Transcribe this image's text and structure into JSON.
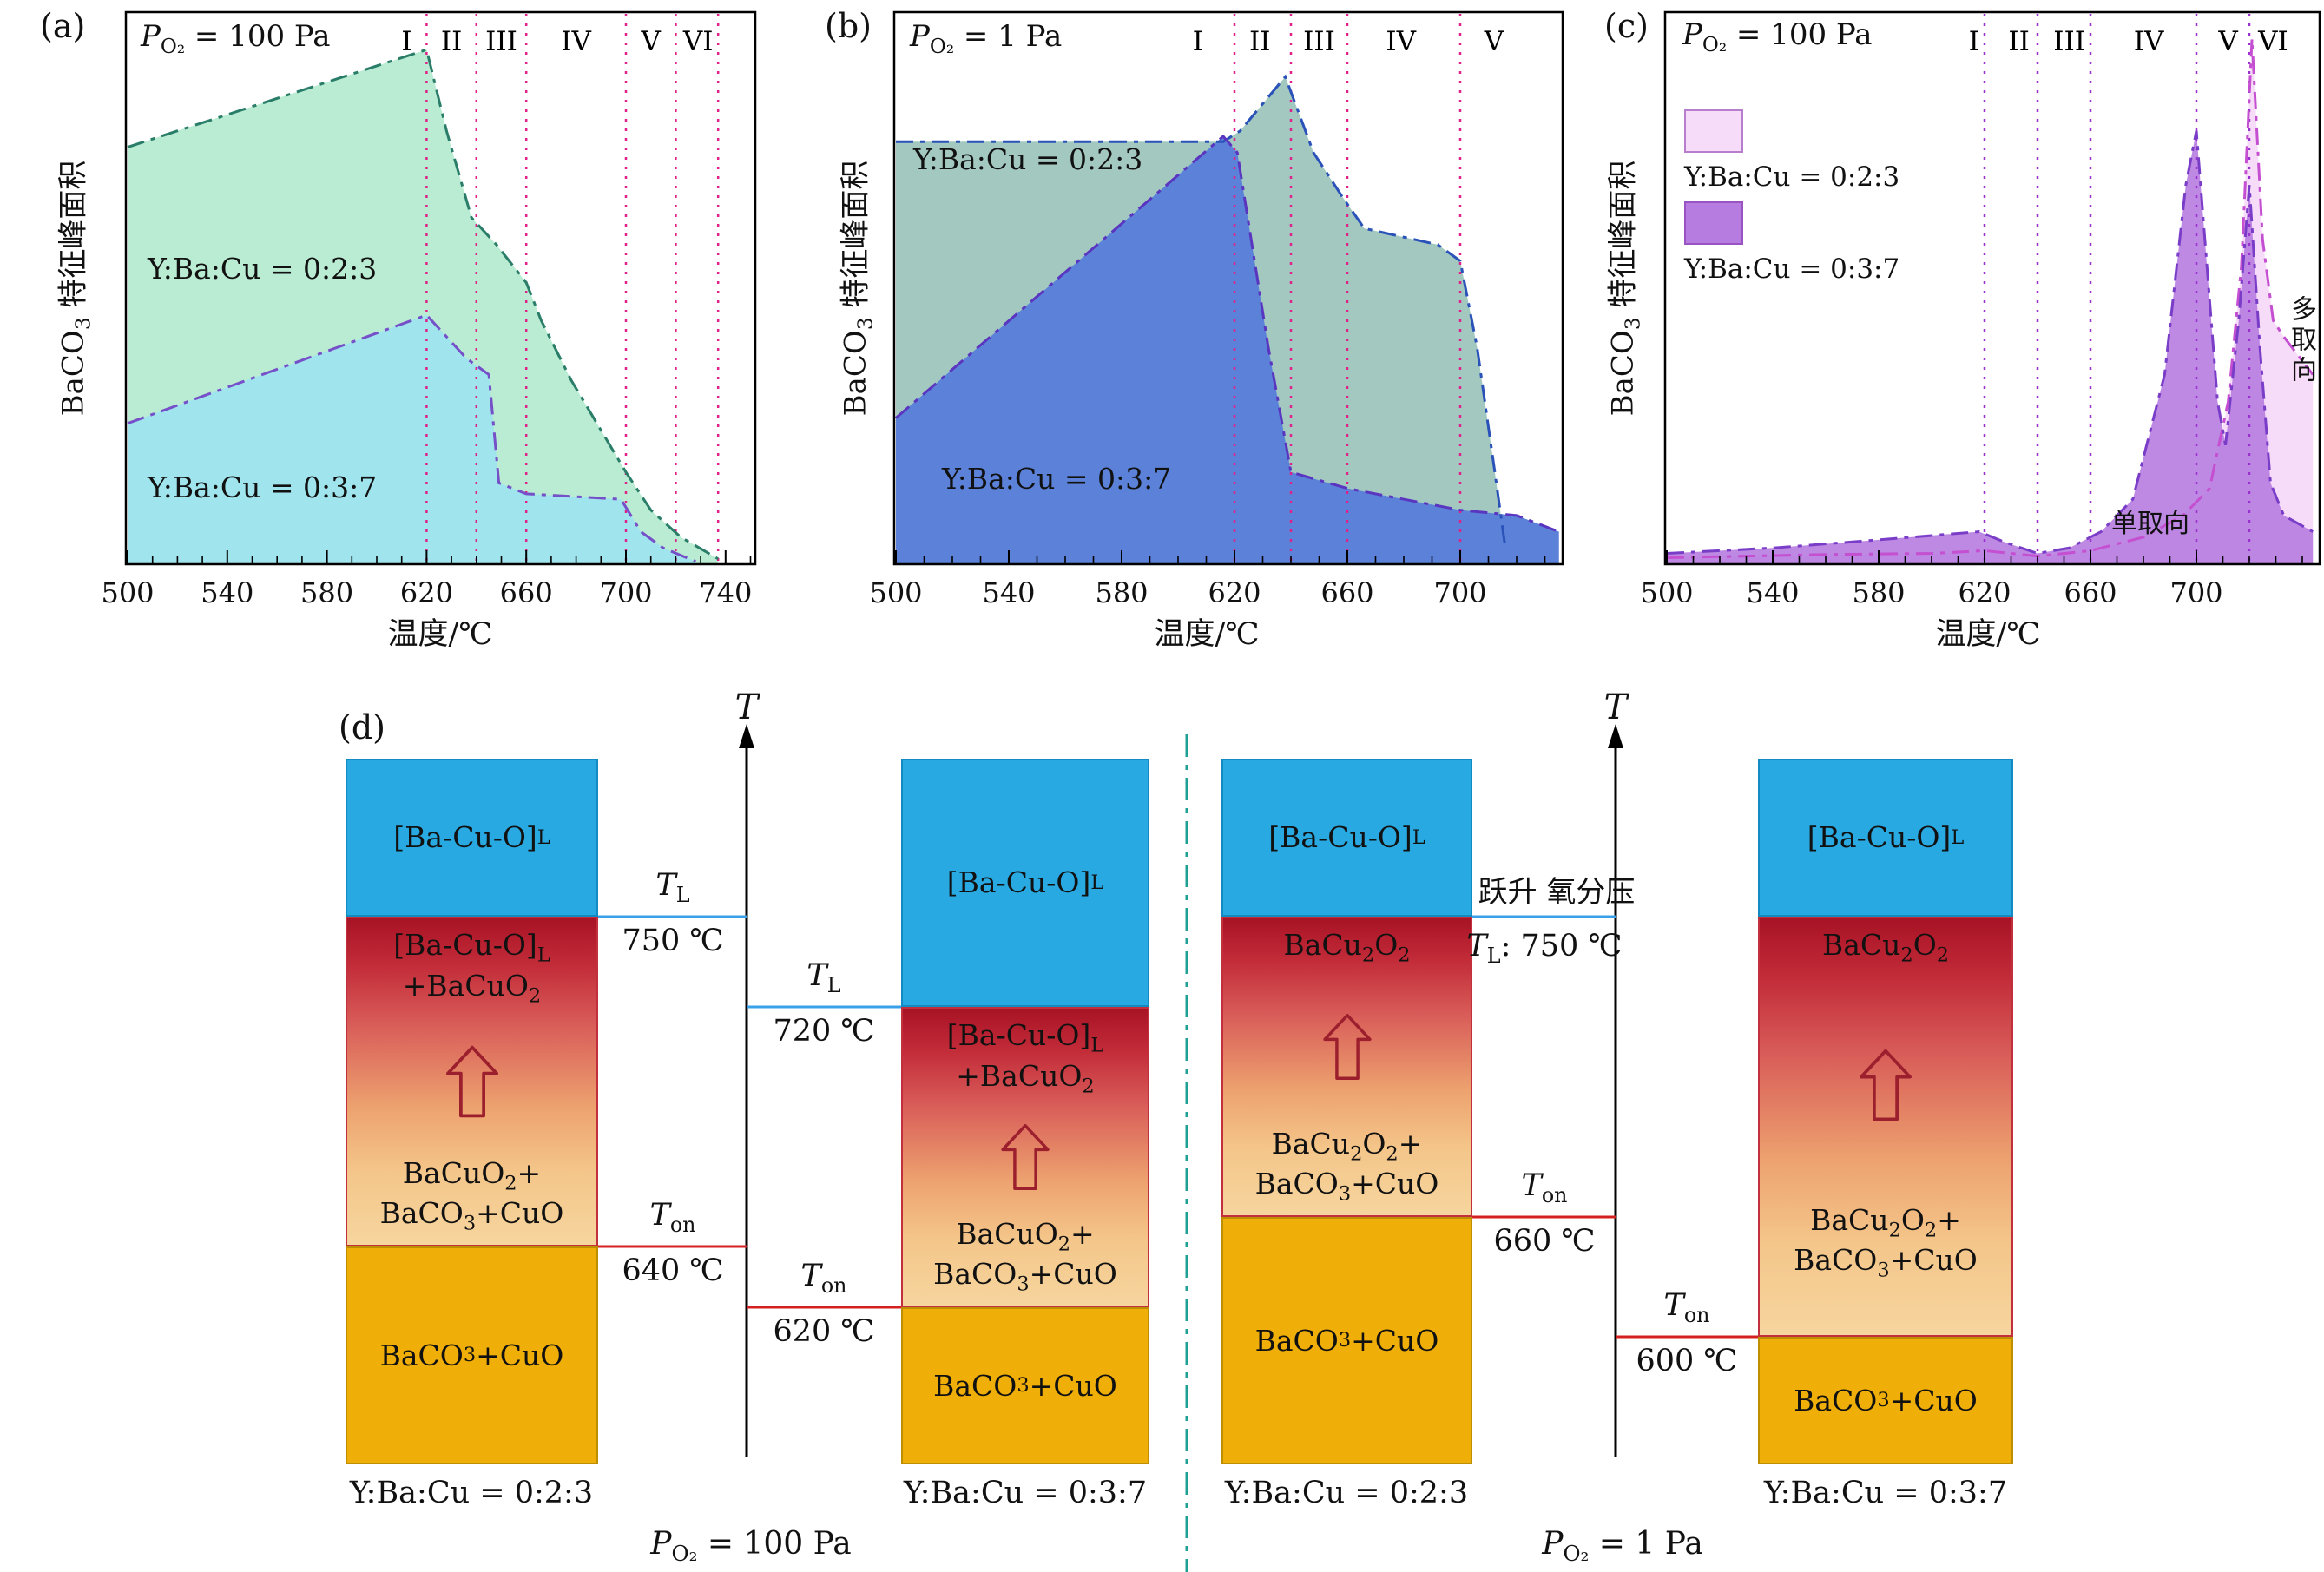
{
  "palette": {
    "boundary_magenta": "#e0218a",
    "boundary_violet": "#9b30d0",
    "liquid_blue": "#29a9e1",
    "solid_gold": "#efae08",
    "tl_line_blue": "#3aa0e8",
    "ton_line_red": "#d42020",
    "divider_teal": "#1fa095",
    "arrow_red": "#9c1f2e"
  },
  "chart_data": [
    {
      "type": "area",
      "panel_label": "(a)",
      "title": {
        "sym": "P",
        "sub": "O₂",
        "rest": "= 100 Pa"
      },
      "xlabel": "温度/℃",
      "ylabel": "BaCO_{3} 特征峰面积",
      "x_ticks": [
        500,
        540,
        580,
        620,
        660,
        700,
        740
      ],
      "x_range": [
        500,
        751
      ],
      "y_range": [
        0,
        1
      ],
      "grid": false,
      "boundary_color": "#e0218a",
      "boundary_temps": [
        620,
        640,
        660,
        700,
        720,
        737
      ],
      "regions": [
        [
          "I",
          612
        ],
        [
          "II",
          630
        ],
        [
          "III",
          650
        ],
        [
          "IV",
          680
        ],
        [
          "V",
          710
        ],
        [
          "VI",
          729
        ]
      ],
      "series": [
        {
          "name": "Y:Ba:Cu = 0:2:3",
          "fill": "#b9ecd2",
          "fill_opacity": 1,
          "stroke": "#2a7d68",
          "points": [
            [
              500,
              0.77
            ],
            [
              620,
              0.95
            ],
            [
              628,
              0.8
            ],
            [
              638,
              0.64
            ],
            [
              648,
              0.59
            ],
            [
              660,
              0.52
            ],
            [
              666,
              0.45
            ],
            [
              678,
              0.34
            ],
            [
              700,
              0.17
            ],
            [
              710,
              0.1
            ],
            [
              722,
              0.05
            ],
            [
              737,
              0.01
            ]
          ]
        },
        {
          "name": "Y:Ba:Cu = 0:3:7",
          "fill": "#a0e4ee",
          "fill_opacity": 1,
          "stroke": "#7550c8",
          "points": [
            [
              500,
              0.26
            ],
            [
              560,
              0.36
            ],
            [
              620,
              0.46
            ],
            [
              636,
              0.38
            ],
            [
              645,
              0.35
            ],
            [
              649,
              0.15
            ],
            [
              660,
              0.13
            ],
            [
              698,
              0.12
            ],
            [
              706,
              0.06
            ],
            [
              715,
              0.03
            ],
            [
              728,
              0.005
            ]
          ]
        }
      ]
    },
    {
      "type": "area",
      "panel_label": "(b)",
      "title": {
        "sym": "P",
        "sub": "O₂",
        "rest": "= 1 Pa"
      },
      "xlabel": "温度/℃",
      "ylabel": "BaCO_{3} 特征峰面积",
      "x_ticks": [
        500,
        540,
        580,
        620,
        660,
        700
      ],
      "x_range": [
        500,
        736
      ],
      "y_range": [
        0,
        1
      ],
      "grid": false,
      "boundary_color": "#e0218a",
      "boundary_temps": [
        620,
        640,
        660,
        700
      ],
      "regions": [
        [
          "I",
          607
        ],
        [
          "II",
          629
        ],
        [
          "III",
          650
        ],
        [
          "IV",
          679
        ],
        [
          "V",
          712
        ]
      ],
      "series": [
        {
          "name": "Y:Ba:Cu = 0:2:3",
          "fill": "#a3c8c0",
          "fill_opacity": 1,
          "stroke": "#2a52b8",
          "points": [
            [
              500,
              0.78
            ],
            [
              616,
              0.78
            ],
            [
              622,
              0.8
            ],
            [
              638,
              0.9
            ],
            [
              648,
              0.76
            ],
            [
              658,
              0.68
            ],
            [
              666,
              0.62
            ],
            [
              692,
              0.59
            ],
            [
              700,
              0.56
            ],
            [
              706,
              0.4
            ],
            [
              712,
              0.18
            ],
            [
              716,
              0.03
            ]
          ]
        },
        {
          "name": "Y:Ba:Cu = 0:3:7",
          "fill": "#5b82d8",
          "fill_opacity": 1,
          "stroke": "#5a35c0",
          "points": [
            [
              500,
              0.27
            ],
            [
              616,
              0.79
            ],
            [
              621,
              0.76
            ],
            [
              632,
              0.4
            ],
            [
              640,
              0.17
            ],
            [
              660,
              0.14
            ],
            [
              700,
              0.1
            ],
            [
              720,
              0.09
            ],
            [
              735,
              0.06
            ]
          ]
        }
      ]
    },
    {
      "type": "area",
      "panel_label": "(c)",
      "title": {
        "sym": "P",
        "sub": "O₂",
        "rest": "= 100 Pa"
      },
      "xlabel": "温度/℃",
      "ylabel": "BaCO_{3} 特征峰面积",
      "x_ticks": [
        500,
        540,
        580,
        620,
        660,
        700
      ],
      "x_range": [
        500,
        744
      ],
      "y_range": [
        0,
        1
      ],
      "grid": false,
      "boundary_color": "#9b30d0",
      "boundary_temps": [
        620,
        640,
        660,
        700,
        720
      ],
      "regions": [
        [
          "I",
          616
        ],
        [
          "II",
          633
        ],
        [
          "III",
          652
        ],
        [
          "IV",
          682
        ],
        [
          "V",
          712
        ],
        [
          "VI",
          729
        ]
      ],
      "annotations": [
        {
          "text": "单取向"
        },
        {
          "text": "多取向"
        }
      ],
      "series": [
        {
          "name": "Y:Ba:Cu = 0:2:3",
          "fill": "#f6dcf8",
          "fill_opacity": 1,
          "stroke": "#c44fd0",
          "points": [
            [
              500,
              0.012
            ],
            [
              560,
              0.018
            ],
            [
              600,
              0.02
            ],
            [
              620,
              0.025
            ],
            [
              640,
              0.015
            ],
            [
              660,
              0.025
            ],
            [
              680,
              0.05
            ],
            [
              695,
              0.09
            ],
            [
              705,
              0.14
            ],
            [
              712,
              0.3
            ],
            [
              717,
              0.55
            ],
            [
              721,
              0.97
            ],
            [
              725,
              0.6
            ],
            [
              729,
              0.45
            ],
            [
              733,
              0.42
            ],
            [
              744,
              0.35
            ]
          ]
        },
        {
          "name": "Y:Ba:Cu = 0:3:7",
          "fill": "#b77ce0",
          "fill_opacity": 0.9,
          "stroke": "#7a3dc8",
          "points": [
            [
              500,
              0.02
            ],
            [
              540,
              0.03
            ],
            [
              580,
              0.045
            ],
            [
              605,
              0.055
            ],
            [
              618,
              0.06
            ],
            [
              628,
              0.04
            ],
            [
              640,
              0.02
            ],
            [
              652,
              0.03
            ],
            [
              664,
              0.06
            ],
            [
              676,
              0.12
            ],
            [
              688,
              0.35
            ],
            [
              696,
              0.7
            ],
            [
              700,
              0.8
            ],
            [
              704,
              0.55
            ],
            [
              708,
              0.3
            ],
            [
              711,
              0.22
            ],
            [
              716,
              0.45
            ],
            [
              720,
              0.7
            ],
            [
              724,
              0.4
            ],
            [
              728,
              0.15
            ],
            [
              733,
              0.09
            ],
            [
              744,
              0.06
            ]
          ]
        }
      ]
    }
  ],
  "diagram": {
    "panel_label": "(d)",
    "axis_symbol": "T",
    "jump_label": "跃升 氧分压",
    "group_captions": [
      {
        "sym": "P",
        "sub": "O₂",
        "rest": "= 100 Pa"
      },
      {
        "sym": "P",
        "sub": "O₂",
        "rest": "= 1 Pa"
      }
    ],
    "marks": {
      "tl750L": {
        "sym": "T",
        "sub": "L",
        "temp": "750 ℃"
      },
      "tl720": {
        "sym": "T",
        "sub": "L",
        "temp": "720 ℃"
      },
      "ton640": {
        "sym": "T",
        "sub": "on",
        "temp": "640 ℃"
      },
      "ton620": {
        "sym": "T",
        "sub": "on",
        "temp": "620 ℃"
      },
      "tl750R": {
        "sym": "T",
        "sub": "L",
        "sep": ": ",
        "temp": "750 ℃"
      },
      "ton660": {
        "sym": "T",
        "sub": "on",
        "temp": "660 ℃"
      },
      "ton600": {
        "sym": "T",
        "sub": "on",
        "temp": "600 ℃"
      }
    },
    "columns": [
      {
        "caption": "Y:Ba:Cu = 0:2:3",
        "liquid": "[Ba-Cu-O]_{L}",
        "mid_upper": "[Ba-Cu-O]_{L}\n+BaCuO_{2}",
        "mid_lower": "BaCuO_{2}+\nBaCO_{3}+CuO",
        "solid": "BaCO_{3}+CuO"
      },
      {
        "caption": "Y:Ba:Cu = 0:3:7",
        "liquid": "[Ba-Cu-O]_{L}",
        "mid_upper": "[Ba-Cu-O]_{L}\n+BaCuO_{2}",
        "mid_lower": "BaCuO_{2}+\nBaCO_{3}+CuO",
        "solid": "BaCO_{3}+CuO"
      },
      {
        "caption": "Y:Ba:Cu = 0:2:3",
        "liquid": "[Ba-Cu-O]_{L}",
        "mid_upper": "BaCu_{2}O_{2}",
        "mid_lower": "BaCu_{2}O_{2}+\nBaCO_{3}+CuO",
        "solid": "BaCO_{3}+CuO"
      },
      {
        "caption": "Y:Ba:Cu = 0:3:7",
        "liquid": "[Ba-Cu-O]_{L}",
        "mid_upper": "BaCu_{2}O_{2}",
        "mid_lower": "BaCu_{2}O_{2}+\nBaCO_{3}+CuO",
        "solid": "BaCO_{3}+CuO"
      }
    ],
    "colors": {
      "liquid_blue": "#29a9e1",
      "solid_gold": "#efae08",
      "gradient": "linear-gradient(180deg,#a81325 0%,#c22b38 14%,#d85b58 32%,#eda26f 58%,#f4c68a 78%,#f6d59e 100%)"
    }
  }
}
